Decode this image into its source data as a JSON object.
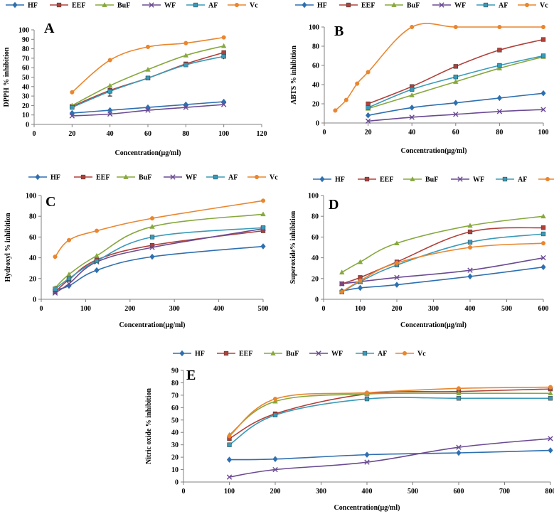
{
  "colors": {
    "HF": "#2e6fb0",
    "EEF": "#b0403a",
    "BuF": "#86a83e",
    "WF": "#6a4a92",
    "AF": "#3a9ab8",
    "Vc": "#e9862e"
  },
  "chart_data": [
    {
      "type": "line",
      "panel": "A",
      "title": "",
      "xlabel": "Concentration(μg/ml)",
      "ylabel": "DPPH % inhibition",
      "xlim": [
        0,
        120
      ],
      "xticks": [
        0,
        20,
        40,
        60,
        80,
        100,
        120
      ],
      "ylim": [
        0,
        100
      ],
      "yticks": [
        0,
        10,
        20,
        30,
        40,
        50,
        60,
        70,
        80,
        90,
        100
      ],
      "legend": [
        "HF",
        "EEF",
        "BuF",
        "WF",
        "AF",
        "Vc"
      ],
      "series": [
        {
          "name": "HF",
          "x": [
            20,
            40,
            60,
            80,
            100
          ],
          "y": [
            12,
            15,
            18,
            21,
            24
          ]
        },
        {
          "name": "EEF",
          "x": [
            20,
            40,
            60,
            80,
            100
          ],
          "y": [
            19,
            36,
            49,
            64,
            76
          ]
        },
        {
          "name": "BuF",
          "x": [
            20,
            40,
            60,
            80,
            100
          ],
          "y": [
            20,
            41,
            58,
            73,
            83
          ]
        },
        {
          "name": "WF",
          "x": [
            20,
            40,
            60,
            80,
            100
          ],
          "y": [
            9,
            11,
            15,
            18,
            21
          ]
        },
        {
          "name": "AF",
          "x": [
            20,
            40,
            60,
            80,
            100
          ],
          "y": [
            18,
            35,
            49,
            63,
            72
          ]
        },
        {
          "name": "Vc",
          "x": [
            20,
            40,
            60,
            80,
            100
          ],
          "y": [
            34,
            68,
            82,
            86,
            92
          ]
        }
      ]
    },
    {
      "type": "line",
      "panel": "B",
      "title": "",
      "xlabel": "Concentration(μg/ml)",
      "ylabel": "ABTS % inhibition",
      "xlim": [
        0,
        100
      ],
      "xticks": [
        0,
        20,
        40,
        60,
        80,
        100
      ],
      "ylim": [
        0,
        100
      ],
      "yticks": [
        0,
        20,
        40,
        60,
        80,
        100
      ],
      "legend": [
        "HF",
        "EEF",
        "BuF",
        "WF",
        "AF",
        "Vc"
      ],
      "series": [
        {
          "name": "HF",
          "x": [
            20,
            40,
            60,
            80,
            100
          ],
          "y": [
            8,
            16,
            21,
            26,
            31
          ]
        },
        {
          "name": "EEF",
          "x": [
            20,
            40,
            60,
            80,
            100
          ],
          "y": [
            20,
            38,
            59,
            76,
            87
          ]
        },
        {
          "name": "BuF",
          "x": [
            20,
            40,
            60,
            80,
            100
          ],
          "y": [
            15,
            29,
            43,
            57,
            69
          ]
        },
        {
          "name": "WF",
          "x": [
            20,
            40,
            60,
            80,
            100
          ],
          "y": [
            2,
            6,
            9,
            12,
            14
          ]
        },
        {
          "name": "AF",
          "x": [
            20,
            40,
            60,
            80,
            100
          ],
          "y": [
            16,
            35,
            48,
            60,
            70
          ]
        },
        {
          "name": "Vc",
          "x": [
            5,
            10,
            15,
            20,
            40,
            60,
            80,
            100
          ],
          "y": [
            13,
            24,
            41,
            53,
            100,
            100,
            100,
            100
          ]
        }
      ]
    },
    {
      "type": "line",
      "panel": "C",
      "title": "",
      "xlabel": "Concentration(μg/ml)",
      "ylabel": "Hydroxyl % inhibition",
      "xlim": [
        0,
        500
      ],
      "xticks": [
        0,
        100,
        200,
        300,
        400,
        500
      ],
      "ylim": [
        0,
        100
      ],
      "yticks": [
        0,
        20,
        40,
        60,
        80,
        100
      ],
      "legend": [
        "HF",
        "EEF",
        "BuF",
        "WF",
        "AF",
        "Vc"
      ],
      "series": [
        {
          "name": "HF",
          "x": [
            31.25,
            62.5,
            125,
            250,
            500
          ],
          "y": [
            9,
            13,
            28,
            41,
            51
          ]
        },
        {
          "name": "EEF",
          "x": [
            31.25,
            62.5,
            125,
            250,
            500
          ],
          "y": [
            7,
            19,
            38,
            52,
            66
          ]
        },
        {
          "name": "BuF",
          "x": [
            31.25,
            62.5,
            125,
            250,
            500
          ],
          "y": [
            11,
            24,
            42,
            70,
            82
          ]
        },
        {
          "name": "WF",
          "x": [
            31.25,
            62.5,
            125,
            250,
            500
          ],
          "y": [
            6,
            15,
            36,
            50,
            68
          ]
        },
        {
          "name": "AF",
          "x": [
            31.25,
            62.5,
            125,
            250,
            500
          ],
          "y": [
            10,
            20,
            37,
            60,
            69
          ]
        },
        {
          "name": "Vc",
          "x": [
            31.25,
            62.5,
            125,
            250,
            500
          ],
          "y": [
            41,
            57,
            66,
            78,
            95
          ]
        }
      ]
    },
    {
      "type": "line",
      "panel": "D",
      "title": "",
      "xlabel": "Concentration(μg/ml)",
      "ylabel": "Superoxide% inhibition",
      "xlim": [
        0,
        600
      ],
      "xticks": [
        0,
        100,
        200,
        300,
        400,
        500,
        600
      ],
      "ylim": [
        0,
        100
      ],
      "yticks": [
        0,
        20,
        40,
        60,
        80,
        100
      ],
      "legend": [
        "HF",
        "EEF",
        "BuF",
        "WF",
        "AF",
        "Vc"
      ],
      "series": [
        {
          "name": "HF",
          "x": [
            50,
            100,
            200,
            400,
            600
          ],
          "y": [
            8,
            11,
            14,
            22,
            31
          ]
        },
        {
          "name": "EEF",
          "x": [
            50,
            100,
            200,
            400,
            600
          ],
          "y": [
            15,
            21,
            36,
            65,
            69
          ]
        },
        {
          "name": "BuF",
          "x": [
            50,
            100,
            200,
            400,
            600
          ],
          "y": [
            26,
            36,
            54,
            71,
            80
          ]
        },
        {
          "name": "WF",
          "x": [
            50,
            100,
            200,
            400,
            600
          ],
          "y": [
            15,
            17,
            21,
            28,
            40
          ]
        },
        {
          "name": "AF",
          "x": [
            50,
            100,
            200,
            400,
            600
          ],
          "y": [
            7,
            17,
            33,
            55,
            63
          ]
        },
        {
          "name": "Vc",
          "x": [
            50,
            100,
            200,
            400,
            600
          ],
          "y": [
            7,
            18,
            35,
            50,
            54
          ]
        }
      ]
    },
    {
      "type": "line",
      "panel": "E",
      "title": "",
      "xlabel": "Concentration(μg/ml)",
      "ylabel": "Nitric oxide % inhibition",
      "xlim": [
        0,
        800
      ],
      "xticks": [
        0,
        100,
        200,
        300,
        400,
        500,
        600,
        700,
        800
      ],
      "ylim": [
        0,
        90
      ],
      "yticks": [
        0,
        10,
        20,
        30,
        40,
        50,
        60,
        70,
        80,
        90
      ],
      "legend": [
        "HF",
        "EEF",
        "BuF",
        "WF",
        "AF",
        "Vc"
      ],
      "series": [
        {
          "name": "HF",
          "x": [
            100,
            200,
            400,
            600,
            800
          ],
          "y": [
            18,
            18.5,
            22,
            23.5,
            25.5
          ]
        },
        {
          "name": "EEF",
          "x": [
            100,
            200,
            400,
            600,
            800
          ],
          "y": [
            35,
            55,
            71,
            73,
            75
          ]
        },
        {
          "name": "BuF",
          "x": [
            100,
            200,
            400,
            600,
            800
          ],
          "y": [
            38,
            65,
            71,
            71.5,
            71.5
          ]
        },
        {
          "name": "WF",
          "x": [
            100,
            200,
            400,
            600,
            800
          ],
          "y": [
            4,
            10,
            16,
            28,
            35
          ]
        },
        {
          "name": "AF",
          "x": [
            100,
            200,
            400,
            600,
            800
          ],
          "y": [
            30,
            54,
            67,
            67.5,
            67.5
          ]
        },
        {
          "name": "Vc",
          "x": [
            100,
            200,
            400,
            600,
            800
          ],
          "y": [
            37,
            67,
            72,
            75.5,
            76.5
          ]
        }
      ]
    }
  ]
}
